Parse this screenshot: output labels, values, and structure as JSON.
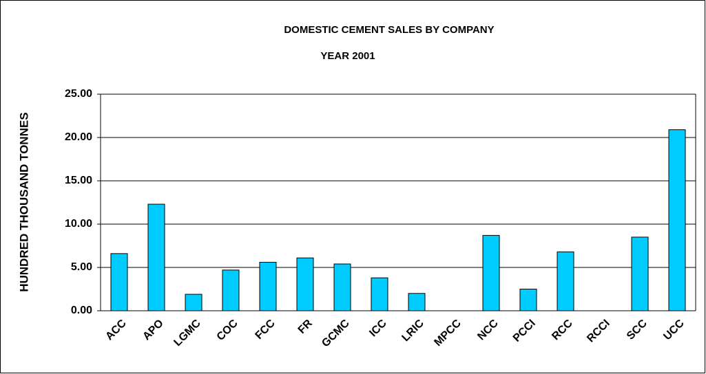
{
  "chart_data": {
    "type": "bar",
    "title": "DOMESTIC CEMENT SALES BY COMPANY",
    "subtitle": "YEAR 2001",
    "y_label": "HUNDRED THOUSAND TONNES",
    "categories": [
      "ACC",
      "APO",
      "LGMC",
      "COC",
      "FCC",
      "FR",
      "GCMC",
      "ICC",
      "LRIC",
      "MPCC",
      "NCC",
      "PCCI",
      "RCC",
      "RCCI",
      "SCC",
      "UCC"
    ],
    "values": [
      6.6,
      12.3,
      1.9,
      4.7,
      5.6,
      6.1,
      5.4,
      3.8,
      2.0,
      0,
      8.7,
      2.5,
      6.8,
      0,
      8.5,
      20.9
    ],
    "color": "#00ccff",
    "ylim": [
      0,
      25
    ],
    "yticks": [
      {
        "value": 0,
        "label": "0.00"
      },
      {
        "value": 5,
        "label": "5.00"
      },
      {
        "value": 10,
        "label": "10.00"
      },
      {
        "value": 15,
        "label": "15.00"
      },
      {
        "value": 20,
        "label": "20.00"
      },
      {
        "value": 25,
        "label": "25.00"
      }
    ],
    "grid": true
  }
}
